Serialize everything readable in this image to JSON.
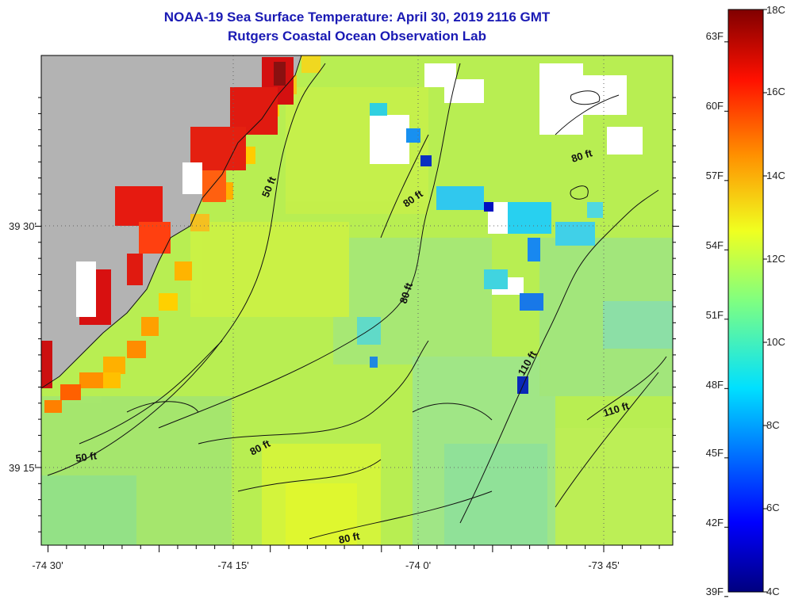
{
  "header": {
    "title": "NOAA-19 Sea Surface Temperature:  April 30, 2019 2116 GMT",
    "subtitle": "Rutgers Coastal Ocean Observation Lab"
  },
  "map": {
    "lon_labels": [
      "-74 30'",
      "-74 15'",
      "-74 0'",
      "-73 45'"
    ],
    "lat_labels": [
      "39 30'",
      "39 15'"
    ],
    "contour_labels": [
      "50 ft",
      "50 ft",
      "80 ft",
      "80 ft",
      "80 ft",
      "80 ft",
      "80 ft",
      "110 ft",
      "110 ft"
    ]
  },
  "colorbar": {
    "celsius_labels": [
      "18C",
      "16C",
      "14C",
      "12C",
      "10C",
      "8C",
      "6C",
      "4C"
    ],
    "fahrenheit_labels": [
      "63F",
      "60F",
      "57F",
      "54F",
      "51F",
      "48F",
      "45F",
      "42F",
      "39F"
    ],
    "min_c": 4,
    "max_c": 18
  },
  "colors": {
    "title": "#1a1ab4",
    "land": "#b3b3b3",
    "cloud": "#ffffff"
  }
}
